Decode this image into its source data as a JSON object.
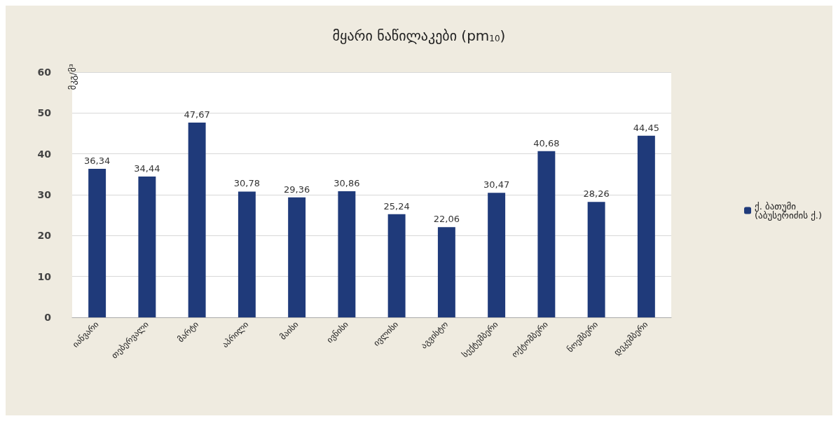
{
  "chart_data": {
    "type": "bar",
    "title": "მყარი ნაწილაკები (pm$_{10}$)",
    "ylabel": "მკგ/მ³",
    "categories": [
      "იანვარი",
      "თებერვალი",
      "მარტი",
      "აპრილი",
      "მაისი",
      "ივნისი",
      "ივლისი",
      "აგვისტო",
      "სექტემბერი",
      "ოქტომბერი",
      "ნოემბერი",
      "დეკემბერი"
    ],
    "series": [
      {
        "name": "ქ. ბათუმი (აბუსერიძის ქ.)",
        "color": "#1f3a7a",
        "values": [
          36.34,
          34.44,
          47.67,
          30.78,
          29.36,
          30.86,
          25.24,
          22.06,
          30.47,
          40.68,
          28.26,
          44.45
        ],
        "value_labels": [
          "36,34",
          "34,44",
          "47,67",
          "30,78",
          "29,36",
          "30,86",
          "25,24",
          "22,06",
          "30,47",
          "40,68",
          "28,26",
          "44,45"
        ]
      }
    ],
    "ylim": [
      0,
      60
    ],
    "yticks": [
      0,
      10,
      20,
      30,
      40,
      50,
      60
    ],
    "grid": "y",
    "legend": "right"
  }
}
